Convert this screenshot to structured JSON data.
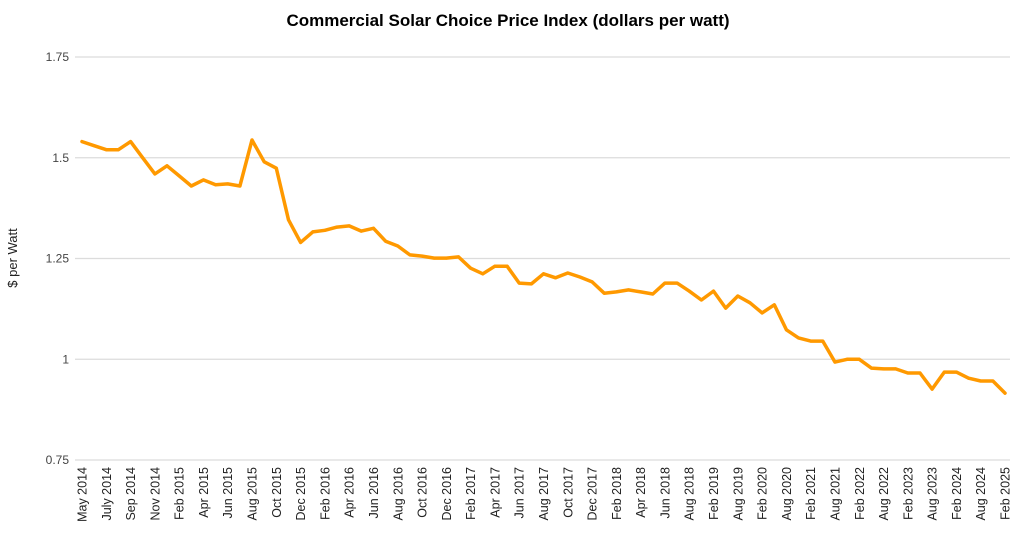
{
  "chart_data": {
    "type": "line",
    "title": "Commercial Solar Choice Price Index (dollars per watt)",
    "xlabel": "",
    "ylabel": "$ per Watt",
    "ylim": [
      0.75,
      1.75
    ],
    "yticks": [
      "0.75",
      "1",
      "1.25",
      "1.5",
      "1.75"
    ],
    "ytick_values": [
      0.75,
      1,
      1.25,
      1.5,
      1.75
    ],
    "grid": true,
    "legend": "none",
    "line_color": "#ff9900",
    "x_tick_labels": [
      "May 2014",
      "July 2014",
      "Sep 2014",
      "Nov 2014",
      "Feb 2015",
      "Apr 2015",
      "Jun 2015",
      "Aug 2015",
      "Oct 2015",
      "Dec 2015",
      "Feb 2016",
      "Apr 2016",
      "Jun 2016",
      "Aug 2016",
      "Oct 2016",
      "Dec 2016",
      "Feb 2017",
      "Apr 2017",
      "Jun 2017",
      "Aug 2017",
      "Oct 2017",
      "Dec 2017",
      "Feb 2018",
      "Apr 2018",
      "Jun 2018",
      "Aug 2018",
      "Feb 2019",
      "Aug 2019",
      "Feb 2020",
      "Aug 2020",
      "Feb 2021",
      "Aug 2021",
      "Feb 2022",
      "Aug 2022",
      "Feb 2023",
      "Aug 2023",
      "Feb 2024",
      "Aug 2024",
      "Feb 2025"
    ],
    "x_tick_every": 2,
    "values": [
      1.54,
      1.53,
      1.52,
      1.52,
      1.54,
      1.5,
      1.46,
      1.48,
      1.455,
      1.43,
      1.445,
      1.433,
      1.435,
      1.43,
      1.544,
      1.49,
      1.474,
      1.346,
      1.29,
      1.316,
      1.32,
      1.328,
      1.331,
      1.318,
      1.325,
      1.293,
      1.281,
      1.259,
      1.256,
      1.251,
      1.251,
      1.254,
      1.226,
      1.212,
      1.231,
      1.231,
      1.189,
      1.187,
      1.212,
      1.202,
      1.214,
      1.204,
      1.192,
      1.164,
      1.167,
      1.172,
      1.167,
      1.162,
      1.189,
      1.189,
      1.169,
      1.147,
      1.169,
      1.127,
      1.157,
      1.14,
      1.115,
      1.135,
      1.073,
      1.053,
      1.045,
      1.045,
      0.993,
      1.0,
      1.0,
      0.978,
      0.976,
      0.976,
      0.966,
      0.966,
      0.926,
      0.968,
      0.968,
      0.953,
      0.946,
      0.946,
      0.916
    ]
  }
}
